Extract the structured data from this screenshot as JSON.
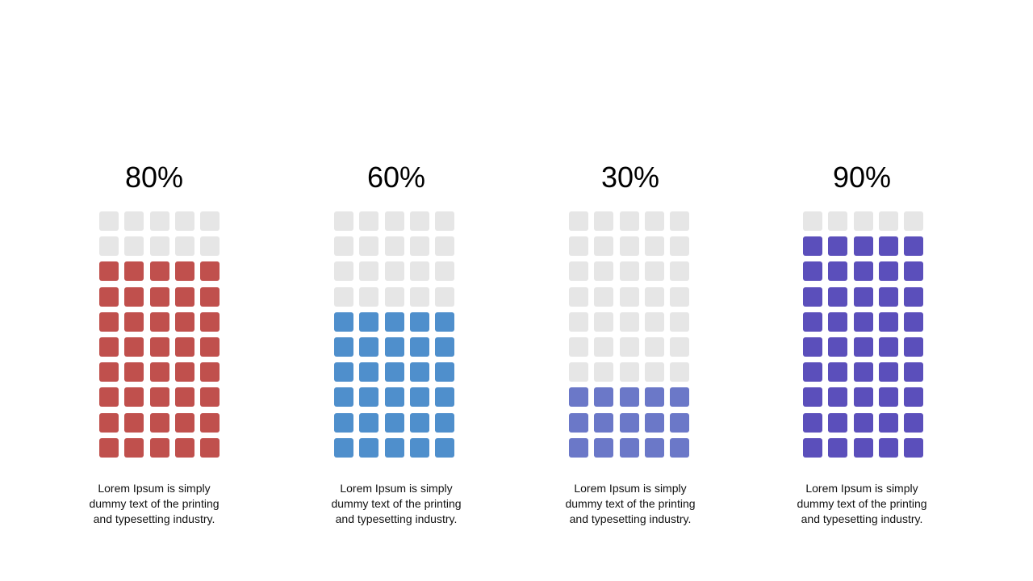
{
  "chart_data": [
    {
      "type": "waffle",
      "value": 80,
      "label": "80%",
      "rows": 10,
      "cols": 5,
      "color": "#c0504d",
      "empty_color": "#e6e6e6",
      "description": "Lorem Ipsum is simply\ndummy  text of the printing\nand typesetting industry."
    },
    {
      "type": "waffle",
      "value": 60,
      "label": "60%",
      "rows": 10,
      "cols": 5,
      "color": "#4f8fcc",
      "empty_color": "#e6e6e6",
      "description": "Lorem Ipsum is simply\ndummy  text of the printing\nand typesetting industry."
    },
    {
      "type": "waffle",
      "value": 30,
      "label": "30%",
      "rows": 10,
      "cols": 5,
      "color": "#6b78c8",
      "empty_color": "#e6e6e6",
      "description": "Lorem Ipsum is simply\ndummy  text of the printing\nand typesetting industry."
    },
    {
      "type": "waffle",
      "value": 90,
      "label": "90%",
      "rows": 10,
      "cols": 5,
      "color": "#5b4fbb",
      "empty_color": "#e6e6e6",
      "description": "Lorem Ipsum is simply\ndummy  text of the printing\nand typesetting industry."
    }
  ]
}
